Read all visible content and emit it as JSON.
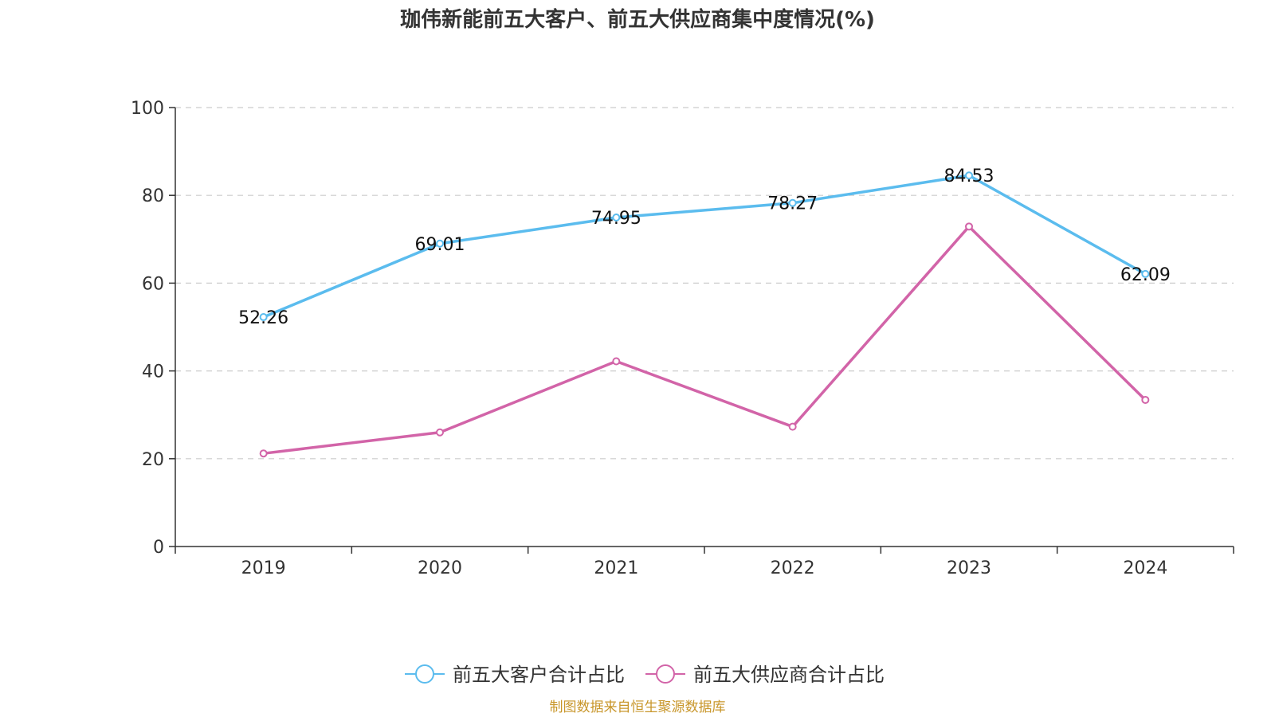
{
  "chart_data": {
    "type": "line",
    "title": "珈伟新能前五大客户、前五大供应商集中度情况(%)",
    "categories": [
      "2019",
      "2020",
      "2021",
      "2022",
      "2023",
      "2024"
    ],
    "ylim": [
      0,
      100
    ],
    "yticks": [
      0,
      20,
      40,
      60,
      80,
      100
    ],
    "grid": true,
    "legend_position": "bottom",
    "series": [
      {
        "name": "前五大客户合计占比",
        "color": "#5bbcee",
        "values": [
          52.26,
          69.01,
          74.95,
          78.27,
          84.53,
          62.09
        ],
        "labels": [
          "52.26",
          "69.01",
          "74.95",
          "78.27",
          "84.53",
          "62.09"
        ]
      },
      {
        "name": "前五大供应商合计占比",
        "color": "#d264a8",
        "values": [
          21.2,
          26.0,
          42.2,
          27.3,
          72.9,
          33.4
        ]
      }
    ]
  },
  "source": "制图数据来自恒生聚源数据库"
}
